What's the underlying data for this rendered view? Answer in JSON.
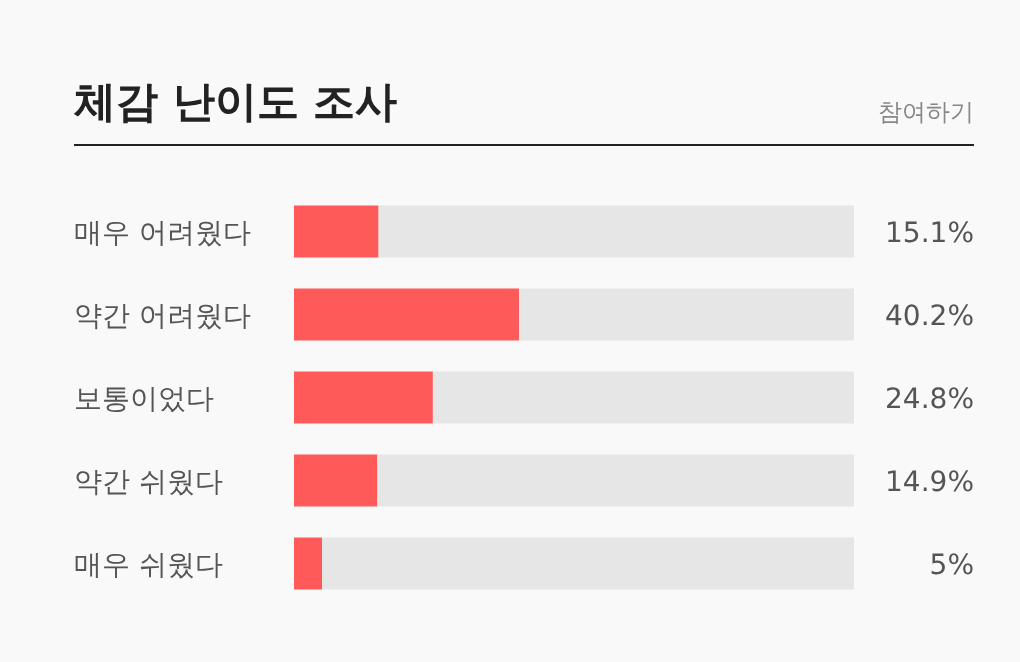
{
  "chart_data": {
    "type": "bar",
    "orientation": "horizontal",
    "stacked": true,
    "title": "체감 난이도 조사",
    "annotations": [
      "참여하기"
    ],
    "categories": [
      "매우 어려웠다",
      "약간 어려웠다",
      "보통이었다",
      "약간 쉬웠다",
      "매우 쉬웠다"
    ],
    "xlim": [
      0,
      100
    ],
    "series": [
      {
        "color": "#ff5a5a",
        "values": [
          15.1,
          40.2,
          24.8,
          14.9,
          5
        ],
        "value_labels": [
          "15.1%",
          "40.2%",
          "24.8%",
          "14.9%",
          "5%"
        ]
      },
      {
        "color": "#e6e6e6",
        "values": [
          84.9,
          59.8,
          75.2,
          85.1,
          95
        ]
      }
    ]
  }
}
